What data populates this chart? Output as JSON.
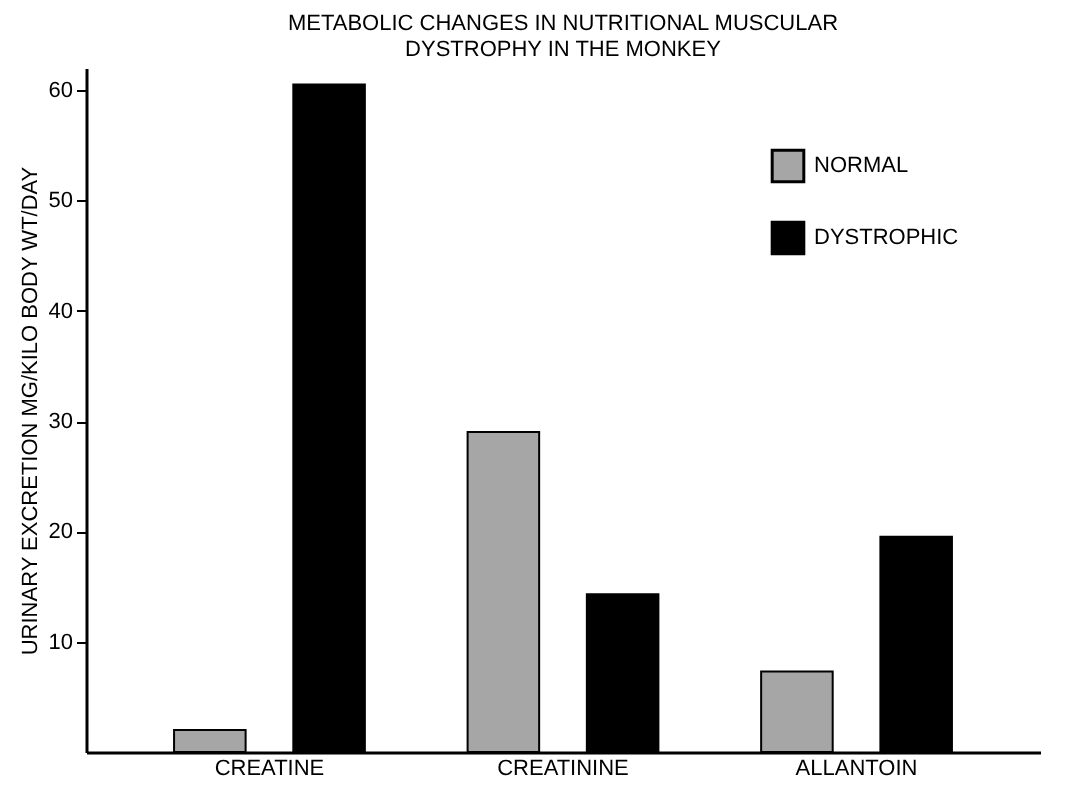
{
  "chart_data": {
    "type": "bar",
    "title": "METABOLIC CHANGES IN NUTRITIONAL MUSCULAR\nDYSTROPHY IN THE MONKEY",
    "ylabel": "URINARY EXCRETION MG/KILO BODY WT/DAY",
    "categories": [
      "CREATINE",
      "CREATININE",
      "ALLANTOIN"
    ],
    "series": [
      {
        "name": "NORMAL",
        "color": "#a6a6a6",
        "values": [
          2,
          29,
          7.3
        ]
      },
      {
        "name": "DYSTROPHIC",
        "color": "#000000",
        "values": [
          60.5,
          14.3,
          19.5
        ]
      }
    ],
    "ylim": [
      0,
      62
    ],
    "yticks": [
      10,
      20,
      30,
      40,
      50,
      60
    ],
    "grid": false,
    "legend": "top right"
  }
}
